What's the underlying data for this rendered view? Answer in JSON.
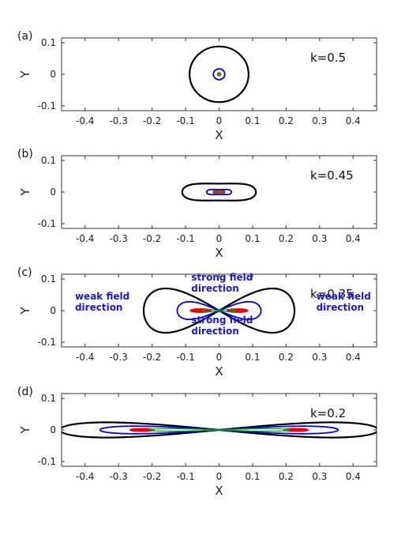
{
  "chart_data": [
    {
      "type": "contour",
      "panel_label": "(a)",
      "annotation": "k=0.5",
      "xlabel": "X",
      "ylabel": "Y",
      "xlim": [
        -0.47,
        0.47
      ],
      "ylim": [
        -0.115,
        0.115
      ],
      "xticks": [
        "-0.4",
        "-0.3",
        "-0.2",
        "-0.1",
        "0",
        "0.1",
        "0.2",
        "0.3",
        "0.4"
      ],
      "yticks": [
        "0.1",
        "0",
        "-0.1"
      ],
      "series": [
        {
          "color": "#000000",
          "shape": "circle",
          "rx": 0.088,
          "ry": 0.088,
          "stroke": 2.2
        },
        {
          "color": "#0000dd",
          "shape": "circle",
          "rx": 0.017,
          "ry": 0.017,
          "stroke": 1.8
        },
        {
          "color": "#ee0000",
          "shape": "circle",
          "rx": 0.0045,
          "ry": 0.0045,
          "stroke": 1.6
        },
        {
          "color": "#00aa00",
          "shape": "circle",
          "rx": 0.0025,
          "ry": 0.0025,
          "stroke": 1.4
        }
      ],
      "text_annotations": []
    },
    {
      "type": "contour",
      "panel_label": "(b)",
      "annotation": "k=0.45",
      "xlabel": "X",
      "ylabel": "Y",
      "xlim": [
        -0.47,
        0.47
      ],
      "ylim": [
        -0.115,
        0.115
      ],
      "xticks": [
        "-0.4",
        "-0.3",
        "-0.2",
        "-0.1",
        "0",
        "0.1",
        "0.2",
        "0.3",
        "0.4"
      ],
      "yticks": [
        "0.1",
        "0",
        "-0.1"
      ],
      "series": [
        {
          "color": "#000000",
          "shape": "peanut",
          "a": 0.11,
          "b": 0.043,
          "waist": 0.62,
          "stroke": 2.2
        },
        {
          "color": "#0000dd",
          "shape": "peanut",
          "a": 0.037,
          "b": 0.014,
          "waist": 0.55,
          "stroke": 1.8
        },
        {
          "color": "#ee0000",
          "shape": "lobes",
          "cx": 0.009,
          "rx": 0.008,
          "ry": 0.0035,
          "stroke": 2.0
        },
        {
          "color": "#00aa00",
          "shape": "lobes",
          "cx": 0.008,
          "rx": 0.004,
          "ry": 0.0015,
          "stroke": 1.4
        }
      ],
      "text_annotations": []
    },
    {
      "type": "contour",
      "panel_label": "(c)",
      "annotation": "k=0.35",
      "xlabel": "X",
      "ylabel": "Y",
      "xlim": [
        -0.47,
        0.47
      ],
      "ylim": [
        -0.115,
        0.115
      ],
      "xticks": [
        "-0.4",
        "-0.3",
        "-0.2",
        "-0.1",
        "0",
        "0.1",
        "0.2",
        "0.3",
        "0.4"
      ],
      "yticks": [
        "0.1",
        "0",
        "-0.1"
      ],
      "series": [
        {
          "color": "#000000",
          "shape": "lemniscate",
          "a": 0.225,
          "b": 0.07,
          "stroke": 2.2
        },
        {
          "color": "#0000dd",
          "shape": "lemniscate",
          "a": 0.125,
          "b": 0.028,
          "stroke": 1.8
        },
        {
          "color": "#ee0000",
          "shape": "lobes",
          "cx": 0.055,
          "rx": 0.03,
          "ry": 0.0045,
          "stroke": 2.2
        },
        {
          "color": "#00aa00",
          "shape": "lemniscate",
          "a": 0.05,
          "b": 0.004,
          "stroke": 1.2
        }
      ],
      "text_annotations": [
        {
          "lines": [
            "weak field",
            "direction"
          ],
          "x": -0.43,
          "y": 0.035,
          "align": "start"
        },
        {
          "lines": [
            "strong field",
            "direction"
          ],
          "x": -0.083,
          "y": 0.095,
          "align": "start"
        },
        {
          "lines": [
            "strong field",
            "direction"
          ],
          "x": -0.083,
          "y": -0.04,
          "align": "start"
        },
        {
          "lines": [
            "weak field",
            "direction"
          ],
          "x": 0.29,
          "y": 0.035,
          "align": "start"
        }
      ]
    },
    {
      "type": "contour",
      "panel_label": "(d)",
      "annotation": "k=0.2",
      "xlabel": "X",
      "ylabel": "Y",
      "xlim": [
        -0.47,
        0.47
      ],
      "ylim": [
        -0.115,
        0.115
      ],
      "xticks": [
        "-0.4",
        "-0.3",
        "-0.2",
        "-0.1",
        "0",
        "0.1",
        "0.2",
        "0.3",
        "0.4"
      ],
      "yticks": [
        "0.1",
        "0",
        "-0.1"
      ],
      "series": [
        {
          "color": "#000000",
          "shape": "lemniscate",
          "a": 0.475,
          "b": 0.024,
          "stroke": 2.2
        },
        {
          "color": "#0000dd",
          "shape": "lemniscate",
          "a": 0.355,
          "b": 0.012,
          "stroke": 1.8
        },
        {
          "color": "#ee0000",
          "shape": "lobes",
          "cx": 0.23,
          "rx": 0.035,
          "ry": 0.0035,
          "stroke": 2.2
        },
        {
          "color": "#00aa00",
          "shape": "lemniscate",
          "a": 0.21,
          "b": 0.004,
          "stroke": 1.2
        }
      ],
      "text_annotations": []
    }
  ]
}
